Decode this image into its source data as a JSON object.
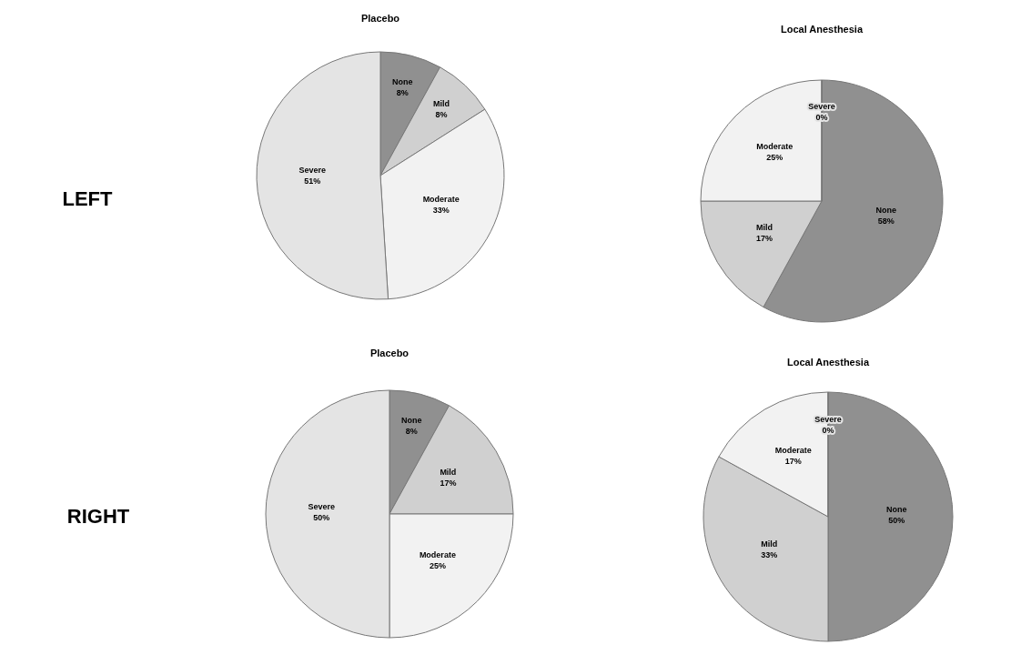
{
  "chart_data": [
    {
      "type": "pie",
      "title": "Placebo",
      "annotations": [
        "LEFT"
      ],
      "categories": [
        "None",
        "Mild",
        "Moderate",
        "Severe"
      ],
      "values": [
        8,
        8,
        33,
        51
      ],
      "value_labels": [
        "8%",
        "8%",
        "33%",
        "51%"
      ],
      "colors": [
        "#909090",
        "#d0d0d0",
        "#f2f2f2",
        "#e4e4e4"
      ]
    },
    {
      "type": "pie",
      "title": "Local Anesthesia",
      "categories": [
        "None",
        "Mild",
        "Moderate",
        "Severe"
      ],
      "values": [
        58,
        17,
        25,
        0
      ],
      "value_labels": [
        "58%",
        "17%",
        "25%",
        "0%"
      ],
      "colors": [
        "#909090",
        "#d0d0d0",
        "#f2f2f2",
        "#e4e4e4"
      ]
    },
    {
      "type": "pie",
      "title": "Placebo",
      "annotations": [
        "RIGHT"
      ],
      "categories": [
        "None",
        "Mild",
        "Moderate",
        "Severe"
      ],
      "values": [
        8,
        17,
        25,
        50
      ],
      "value_labels": [
        "8%",
        "17%",
        "25%",
        "50%"
      ],
      "colors": [
        "#909090",
        "#d0d0d0",
        "#f2f2f2",
        "#e4e4e4"
      ]
    },
    {
      "type": "pie",
      "title": "Local Anesthesia",
      "categories": [
        "None",
        "Mild",
        "Moderate",
        "Severe"
      ],
      "values": [
        50,
        33,
        17,
        0
      ],
      "value_labels": [
        "50%",
        "33%",
        "17%",
        "0%"
      ],
      "colors": [
        "#909090",
        "#d0d0d0",
        "#f2f2f2",
        "#e4e4e4"
      ]
    }
  ]
}
